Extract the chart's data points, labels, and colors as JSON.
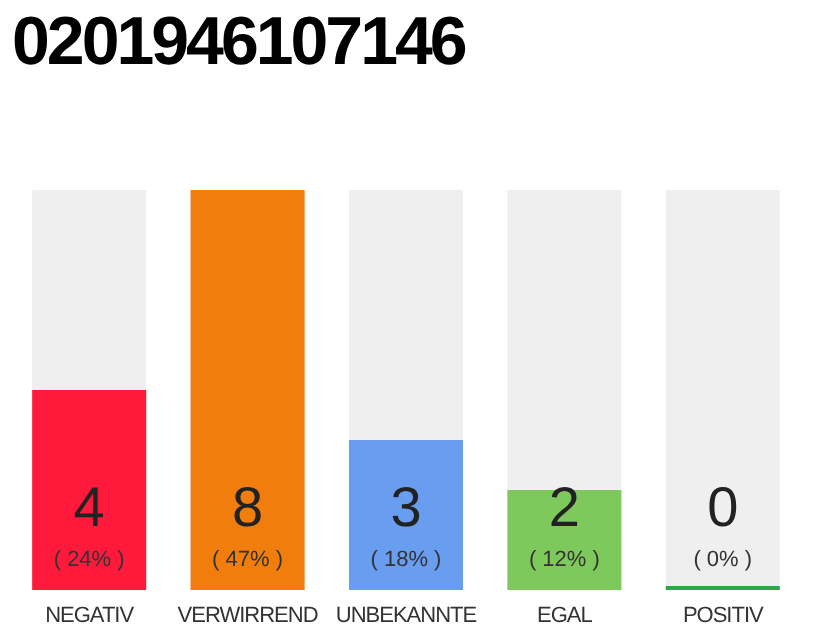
{
  "chart_data": {
    "type": "bar",
    "title": "0201946107146",
    "categories": [
      "NEGATIV",
      "VERWIRREND",
      "UNBEKANNTE",
      "EGAL",
      "POSITIV"
    ],
    "values": [
      4,
      8,
      3,
      2,
      0
    ],
    "colors": [
      "#ff1a3c",
      "#f07d0c",
      "#689df0",
      "#7ec95c",
      "#2ca84a"
    ],
    "data_labels": true,
    "annotations": [
      "( 24% )",
      "( 47% )",
      "( 18% )",
      "( 12% )",
      "( 0% )"
    ]
  }
}
